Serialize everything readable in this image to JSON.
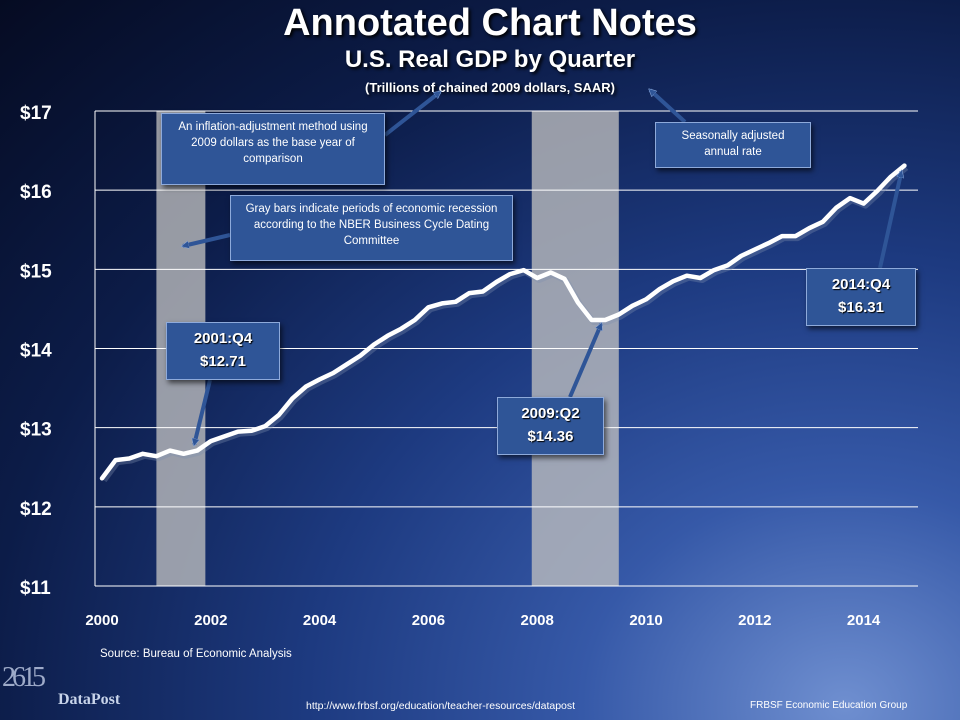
{
  "header": {
    "title": "Annotated Chart Notes",
    "subtitle": "U.S. Real GDP by Quarter",
    "units": "(Trillions of chained 2009 dollars, SAAR)"
  },
  "callouts": {
    "inflation": "An inflation-adjustment method using 2009 dollars as the base year of comparison",
    "saar": "Seasonally adjusted annual rate",
    "recession": "Gray bars indicate periods of economic recession according to the NBER Business Cycle Dating Committee",
    "q2001_label": "2001:Q4",
    "q2001_value": "$12.71",
    "q2009_label": "2009:Q2",
    "q2009_value": "$14.36",
    "q2014_label": "2014:Q4",
    "q2014_value": "$16.31"
  },
  "footer": {
    "source": "Source: Bureau of Economic Analysis",
    "url": "http://www.frbsf.org/education/teacher-resources/datapost",
    "group": "FRBSF Economic Education Group",
    "logo": "DataPost",
    "logo_numbers": "2615"
  },
  "colors": {
    "line": "#ffffff",
    "recession": "#bfbfbf",
    "callout": "#2f5597",
    "grid": "#ffffff"
  },
  "chart_data": {
    "type": "line",
    "title": "U.S. Real GDP by Quarter",
    "ylabel": "(Trillions of chained 2009 dollars, SAAR)",
    "xlim": [
      2000,
      2015
    ],
    "ylim": [
      11,
      17
    ],
    "xticks": [
      2000,
      2002,
      2004,
      2006,
      2008,
      2010,
      2012,
      2014
    ],
    "xtick_labels": [
      "2000",
      "2002",
      "2004",
      "2006",
      "2008",
      "2010",
      "2012",
      "2014"
    ],
    "yticks": [
      11,
      12,
      13,
      14,
      15,
      16,
      17
    ],
    "ytick_labels": [
      "$11",
      "$12",
      "$13",
      "$14",
      "$15",
      "$16",
      "$17"
    ],
    "grid": "horizontal",
    "recessions": [
      [
        2001.0,
        2001.9
      ],
      [
        2007.9,
        2009.5
      ]
    ],
    "series": [
      {
        "quarters_start": 2000.0,
        "values": [
          12.36,
          12.59,
          12.61,
          12.67,
          12.64,
          12.71,
          12.67,
          12.71,
          12.83,
          12.89,
          12.95,
          12.96,
          13.02,
          13.16,
          13.37,
          13.52,
          13.61,
          13.69,
          13.8,
          13.91,
          14.05,
          14.16,
          14.25,
          14.36,
          14.52,
          14.57,
          14.59,
          14.7,
          14.72,
          14.84,
          14.94,
          14.99,
          14.89,
          14.96,
          14.88,
          14.58,
          14.36,
          14.36,
          14.43,
          14.54,
          14.62,
          14.75,
          14.85,
          14.92,
          14.89,
          14.99,
          15.05,
          15.17,
          15.25,
          15.33,
          15.42,
          15.42,
          15.52,
          15.6,
          15.78,
          15.9,
          15.83,
          15.99,
          16.17,
          16.31
        ]
      }
    ],
    "annotations": [
      {
        "x": 2001.75,
        "y": 12.71,
        "label": "2001:Q4 $12.71"
      },
      {
        "x": 2009.25,
        "y": 14.36,
        "label": "2009:Q2 $14.36"
      },
      {
        "x": 2014.75,
        "y": 16.31,
        "label": "2014:Q4 $16.31"
      }
    ]
  }
}
